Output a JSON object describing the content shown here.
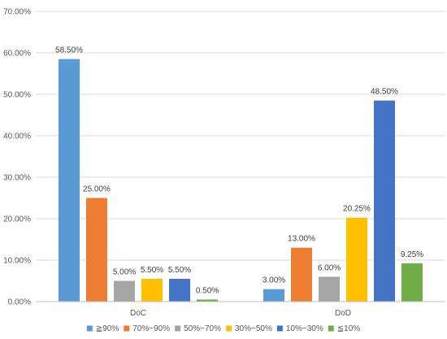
{
  "chart_data": {
    "type": "bar",
    "categories": [
      "DoC",
      "DoD"
    ],
    "series": [
      {
        "name": "≧90%",
        "color": "#5b9bd5",
        "values": [
          58.5,
          3.0
        ]
      },
      {
        "name": "70%~90%",
        "color": "#ed7d31",
        "values": [
          25.0,
          13.0
        ]
      },
      {
        "name": "50%~70%",
        "color": "#a5a5a5",
        "values": [
          5.0,
          6.0
        ]
      },
      {
        "name": "30%~50%",
        "color": "#ffc000",
        "values": [
          5.5,
          20.25
        ]
      },
      {
        "name": "10%~30%",
        "color": "#4472c4",
        "values": [
          5.5,
          48.5
        ]
      },
      {
        "name": "≦10%",
        "color": "#70ad47",
        "values": [
          0.5,
          9.25
        ]
      }
    ],
    "data_labels": [
      [
        "58.50%",
        "3.00%"
      ],
      [
        "25.00%",
        "13.00%"
      ],
      [
        "5.00%",
        "6.00%"
      ],
      [
        "5.50%",
        "20.25%"
      ],
      [
        "5.50%",
        "48.50%"
      ],
      [
        "0.50%",
        "9.25%"
      ]
    ],
    "y_ticks": [
      0,
      10,
      20,
      30,
      40,
      50,
      60,
      70
    ],
    "y_tick_labels": [
      "0.00%",
      "10.00%",
      "20.00%",
      "30.00%",
      "40.00%",
      "50.00%",
      "60.00%",
      "70.00%"
    ],
    "ylim": [
      0,
      70
    ],
    "grid": true,
    "legend": "bottom"
  }
}
